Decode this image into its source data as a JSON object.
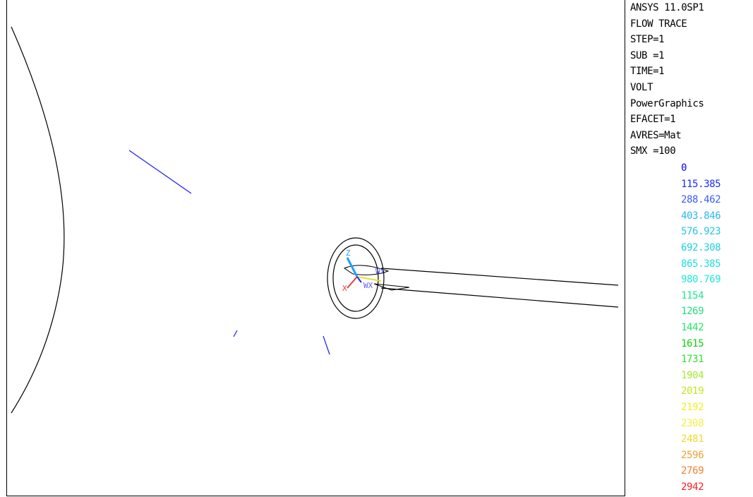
{
  "info_lines": [
    "ANSYS 11.0SP1",
    "FLOW TRACE",
    "STEP=1",
    "SUB =1",
    "TIME=1",
    "VOLT",
    "PowerGraphics",
    "EFACET=1",
    "AVRES=Mat",
    "SMX =100"
  ],
  "legend": [
    {
      "value": "0",
      "color": "#0000ff"
    },
    {
      "value": "115.385",
      "color": "#1a2cff"
    },
    {
      "value": "288.462",
      "color": "#3c5cff"
    },
    {
      "value": "403.846",
      "color": "#29b6f6"
    },
    {
      "value": "576.923",
      "color": "#25c6e8"
    },
    {
      "value": "692.308",
      "color": "#20cfe0"
    },
    {
      "value": "865.385",
      "color": "#20e0e0"
    },
    {
      "value": "980.769",
      "color": "#20e8d8"
    },
    {
      "value": "1154",
      "color": "#20e890"
    },
    {
      "value": "1269",
      "color": "#20e080"
    },
    {
      "value": "1442",
      "color": "#20e860"
    },
    {
      "value": "1615",
      "color": "#10d010"
    },
    {
      "value": "1731",
      "color": "#30e030"
    },
    {
      "value": "1904",
      "color": "#a8e830"
    },
    {
      "value": "2019",
      "color": "#c0e820"
    },
    {
      "value": "2192",
      "color": "#f0f020"
    },
    {
      "value": "2308",
      "color": "#f0f040"
    },
    {
      "value": "2481",
      "color": "#f0d830"
    },
    {
      "value": "2596",
      "color": "#f0a030"
    },
    {
      "value": "2769",
      "color": "#f08030"
    },
    {
      "value": "2942",
      "color": "#ff2020"
    }
  ],
  "triad": {
    "z_label": "Z",
    "x_label": "X",
    "wx_label": "WX",
    "wy_label": "WY"
  }
}
